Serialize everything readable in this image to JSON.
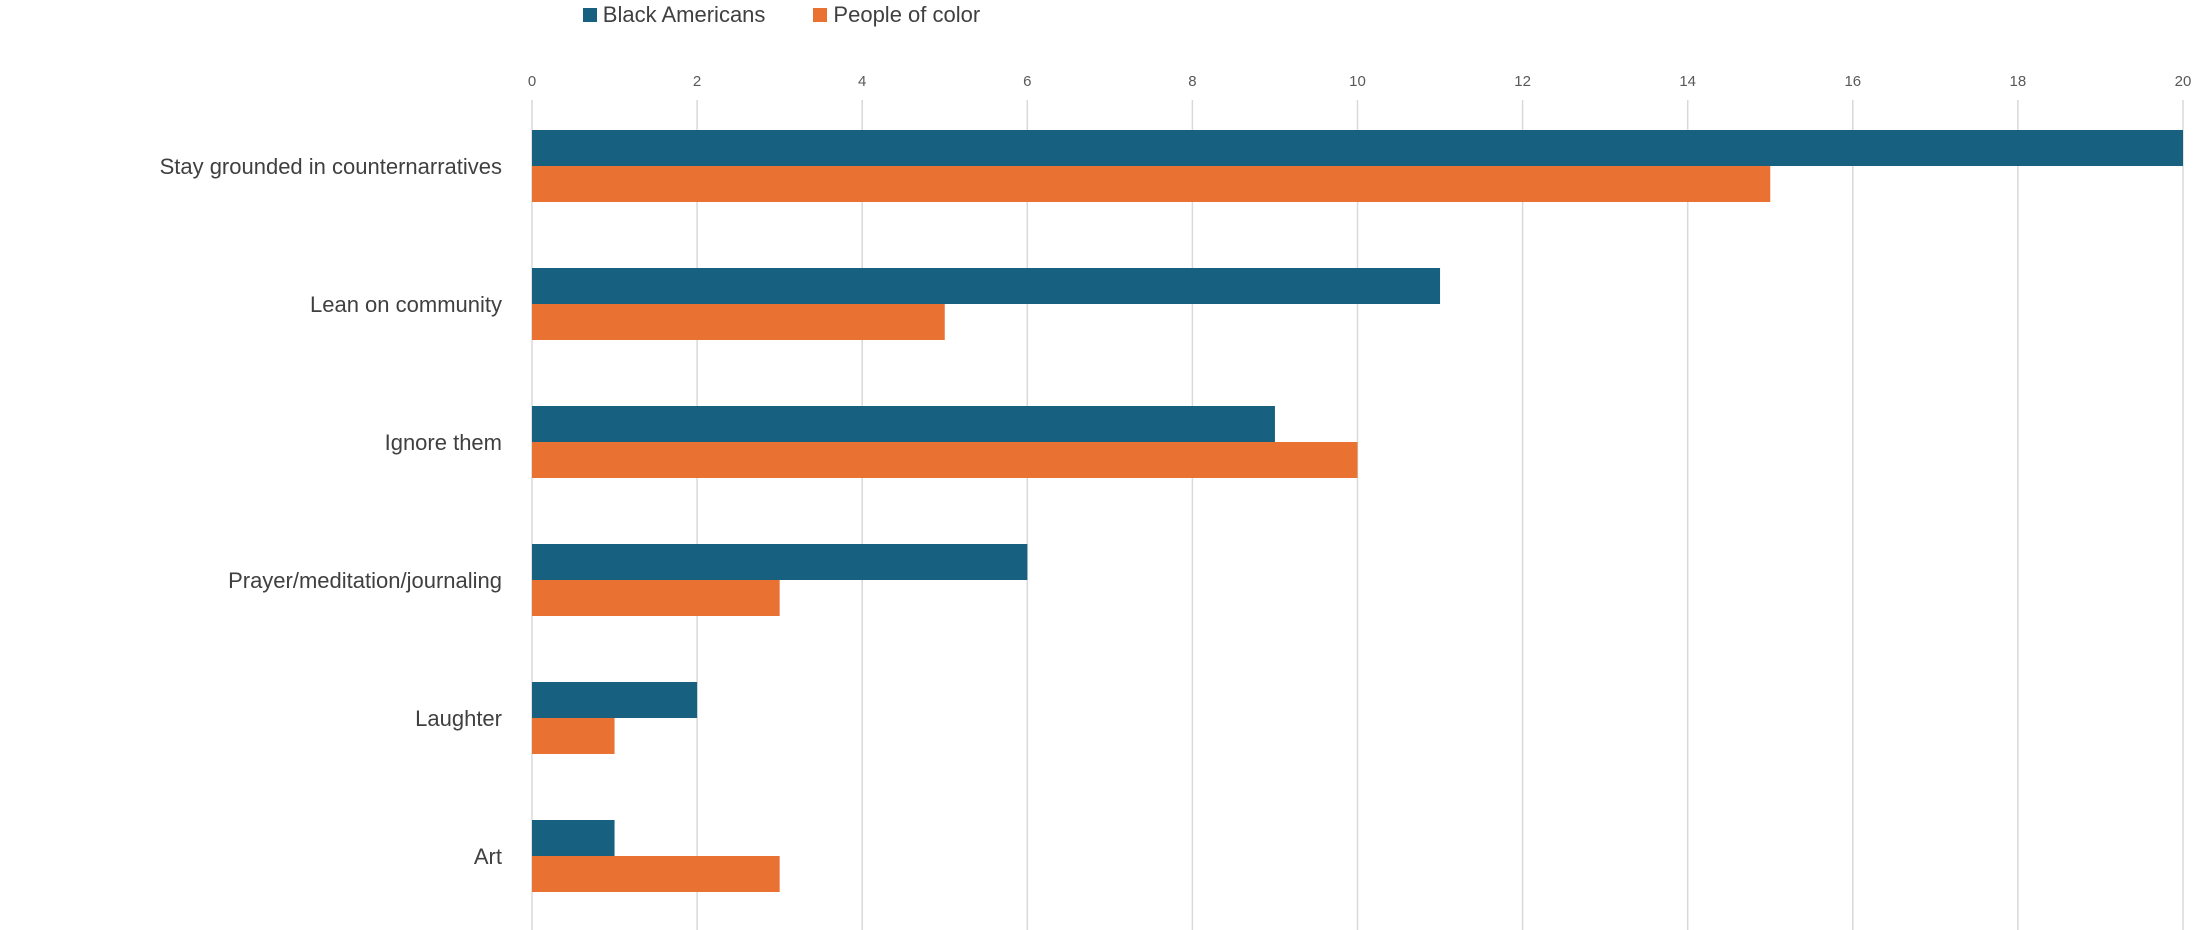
{
  "chart_data": {
    "type": "bar",
    "orientation": "horizontal",
    "categories": [
      "Stay grounded in counternarratives",
      "Lean on community",
      "Ignore them",
      "Prayer/meditation/journaling",
      "Laughter",
      "Art"
    ],
    "series": [
      {
        "name": "Black Americans",
        "color": "#17607f",
        "values": [
          20,
          11,
          9,
          6,
          2,
          1
        ]
      },
      {
        "name": "People of color",
        "color": "#e97132",
        "values": [
          15,
          5,
          10,
          3,
          1,
          3
        ]
      }
    ],
    "xlim": [
      0,
      20
    ],
    "xticks": [
      "0",
      "2",
      "4",
      "6",
      "8",
      "10",
      "12",
      "14",
      "16",
      "18",
      "20"
    ],
    "grid": true,
    "legend_position": "top",
    "xaxis_position": "top"
  }
}
